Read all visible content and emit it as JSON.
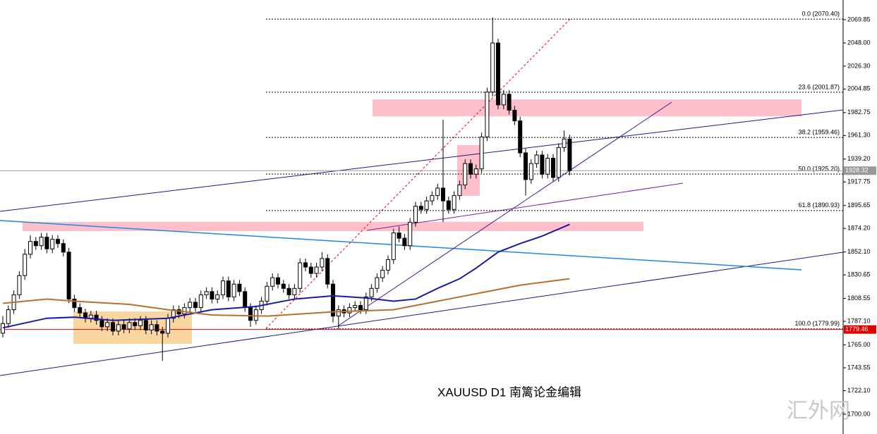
{
  "chart_data": {
    "type": "candlestick",
    "annotation": "XAUUSD  D1  南篱论金编辑",
    "watermark": "汇外网",
    "ylim": [
      1681.5,
      2088.3
    ],
    "yticks": [
      2069.85,
      2048,
      2026.3,
      2004.85,
      1982.75,
      1961.3,
      1939.2,
      1917.75,
      1895.65,
      1874.2,
      1852.1,
      1830.65,
      1808.55,
      1787.1,
      1765,
      1743.55,
      1722.1,
      1700
    ],
    "ytick_labels": [
      "2069.85",
      "2048.00",
      "2026.30",
      "2004.85",
      "1982.75",
      "1961.30",
      "1939.20",
      "1917.75",
      "1895.65",
      "1874.20",
      "1852.10",
      "1830.65",
      "1808.55",
      "1787.10",
      "1765.00",
      "1743.55",
      "1722.10",
      "1700.00"
    ],
    "ohlc": [
      [
        1776,
        1792,
        1772,
        1785
      ],
      [
        1785,
        1802,
        1781,
        1798
      ],
      [
        1798,
        1816,
        1794,
        1812
      ],
      [
        1812,
        1834,
        1808,
        1830
      ],
      [
        1830,
        1855,
        1826,
        1850
      ],
      [
        1850,
        1868,
        1846,
        1862
      ],
      [
        1862,
        1866,
        1854,
        1858
      ],
      [
        1858,
        1870,
        1854,
        1866
      ],
      [
        1866,
        1870,
        1851,
        1855
      ],
      [
        1855,
        1868,
        1851,
        1864
      ],
      [
        1864,
        1868,
        1856,
        1860
      ],
      [
        1860,
        1864,
        1848,
        1852
      ],
      [
        1852,
        1856,
        1804,
        1808
      ],
      [
        1808,
        1812,
        1796,
        1800
      ],
      [
        1800,
        1804,
        1791,
        1795
      ],
      [
        1795,
        1799,
        1786,
        1790
      ],
      [
        1790,
        1797,
        1786,
        1793
      ],
      [
        1793,
        1797,
        1784,
        1788
      ],
      [
        1788,
        1792,
        1778,
        1782
      ],
      [
        1782,
        1790,
        1778,
        1786
      ],
      [
        1786,
        1790,
        1774,
        1778
      ],
      [
        1778,
        1788,
        1774,
        1784
      ],
      [
        1784,
        1788,
        1776,
        1780
      ],
      [
        1780,
        1790,
        1776,
        1786
      ],
      [
        1786,
        1790,
        1779,
        1783
      ],
      [
        1783,
        1792,
        1779,
        1788
      ],
      [
        1788,
        1792,
        1775,
        1779
      ],
      [
        1779,
        1788,
        1775,
        1784
      ],
      [
        1784,
        1788,
        1774,
        1778
      ],
      [
        1778,
        1782,
        1750,
        1776
      ],
      [
        1776,
        1794,
        1772,
        1790
      ],
      [
        1790,
        1802,
        1786,
        1798
      ],
      [
        1798,
        1802,
        1790,
        1794
      ],
      [
        1794,
        1804,
        1790,
        1800
      ],
      [
        1800,
        1809,
        1796,
        1805
      ],
      [
        1805,
        1809,
        1796,
        1800
      ],
      [
        1800,
        1816,
        1796,
        1812
      ],
      [
        1812,
        1819,
        1808,
        1815
      ],
      [
        1815,
        1819,
        1804,
        1808
      ],
      [
        1808,
        1816,
        1804,
        1812
      ],
      [
        1812,
        1829,
        1808,
        1825
      ],
      [
        1825,
        1829,
        1806,
        1810
      ],
      [
        1810,
        1826,
        1806,
        1822
      ],
      [
        1822,
        1826,
        1811,
        1815
      ],
      [
        1815,
        1819,
        1796,
        1800
      ],
      [
        1800,
        1804,
        1782,
        1788
      ],
      [
        1788,
        1802,
        1784,
        1798
      ],
      [
        1798,
        1810,
        1794,
        1806
      ],
      [
        1806,
        1824,
        1802,
        1820
      ],
      [
        1820,
        1832,
        1816,
        1828
      ],
      [
        1828,
        1832,
        1818,
        1822
      ],
      [
        1822,
        1826,
        1814,
        1818
      ],
      [
        1818,
        1822,
        1808,
        1812
      ],
      [
        1812,
        1822,
        1808,
        1818
      ],
      [
        1818,
        1846,
        1814,
        1842
      ],
      [
        1842,
        1846,
        1834,
        1838
      ],
      [
        1838,
        1842,
        1828,
        1832
      ],
      [
        1832,
        1842,
        1828,
        1838
      ],
      [
        1838,
        1852,
        1834,
        1846
      ],
      [
        1846,
        1850,
        1818,
        1822
      ],
      [
        1822,
        1826,
        1786,
        1792
      ],
      [
        1792,
        1802,
        1780,
        1798
      ],
      [
        1798,
        1802,
        1791,
        1795
      ],
      [
        1795,
        1804,
        1791,
        1800
      ],
      [
        1800,
        1806,
        1796,
        1802
      ],
      [
        1802,
        1806,
        1794,
        1798
      ],
      [
        1798,
        1814,
        1794,
        1810
      ],
      [
        1810,
        1822,
        1806,
        1818
      ],
      [
        1818,
        1832,
        1814,
        1828
      ],
      [
        1828,
        1839,
        1824,
        1835
      ],
      [
        1835,
        1849,
        1831,
        1845
      ],
      [
        1845,
        1874,
        1841,
        1870
      ],
      [
        1870,
        1876,
        1861,
        1865
      ],
      [
        1865,
        1869,
        1854,
        1858
      ],
      [
        1858,
        1884,
        1854,
        1880
      ],
      [
        1880,
        1899,
        1876,
        1895
      ],
      [
        1895,
        1899,
        1888,
        1892
      ],
      [
        1892,
        1904,
        1888,
        1900
      ],
      [
        1900,
        1909,
        1896,
        1905
      ],
      [
        1905,
        1916,
        1901,
        1912
      ],
      [
        1912,
        1976,
        1880,
        1900
      ],
      [
        1900,
        1904,
        1888,
        1892
      ],
      [
        1892,
        1909,
        1888,
        1905
      ],
      [
        1905,
        1919,
        1901,
        1915
      ],
      [
        1915,
        1939,
        1911,
        1935
      ],
      [
        1935,
        1939,
        1921,
        1925
      ],
      [
        1925,
        1934,
        1921,
        1930
      ],
      [
        1930,
        1964,
        1926,
        1960
      ],
      [
        1960,
        2006,
        1956,
        2002
      ],
      [
        2002,
        2072,
        1998,
        2048
      ],
      [
        2048,
        2052,
        1986,
        1990
      ],
      [
        1990,
        2004,
        1986,
        2000
      ],
      [
        2000,
        2004,
        1981,
        1985
      ],
      [
        1985,
        1989,
        1971,
        1975
      ],
      [
        1975,
        1979,
        1941,
        1945
      ],
      [
        1945,
        1949,
        1905,
        1920
      ],
      [
        1920,
        1939,
        1916,
        1935
      ],
      [
        1935,
        1947,
        1931,
        1943
      ],
      [
        1943,
        1947,
        1921,
        1925
      ],
      [
        1925,
        1944,
        1921,
        1940
      ],
      [
        1940,
        1944,
        1918,
        1922
      ],
      [
        1922,
        1954,
        1918,
        1950
      ],
      [
        1950,
        1966,
        1946,
        1958
      ],
      [
        1958,
        1962,
        1924,
        1928.32
      ]
    ],
    "series": [
      {
        "color": "#1a1aa6",
        "x": [
          0,
          8,
          13,
          20,
          30,
          38,
          46,
          53,
          60,
          66,
          71,
          75,
          79,
          83,
          86,
          90,
          94,
          98,
          103
        ],
        "values": [
          1781,
          1790,
          1791,
          1788,
          1790,
          1798,
          1801,
          1808,
          1811,
          1809,
          1806,
          1808,
          1818,
          1827,
          1837,
          1852,
          1860,
          1867,
          1878
        ]
      },
      {
        "color": "#b8702a",
        "x": [
          0,
          8,
          13,
          23,
          30,
          38,
          48,
          60,
          71,
          79,
          87,
          94,
          103
        ],
        "values": [
          1804,
          1808,
          1806,
          1803,
          1798,
          1793,
          1792,
          1796,
          1798,
          1806,
          1814,
          1821,
          1827
        ]
      }
    ],
    "fib_levels": [
      {
        "value": 2070.4,
        "label": "0.0 (2070.40)"
      },
      {
        "value": 2001.87,
        "label": "23.6 (2001.87)"
      },
      {
        "value": 1959.46,
        "label": "38.2 (1959.46)"
      },
      {
        "value": 1925.2,
        "label": "50.0 (1925.20)"
      },
      {
        "value": 1890.93,
        "label": "61.8 (1890.93)"
      },
      {
        "value": 1779.99,
        "label": "100.0 (1779.99)"
      }
    ],
    "price_tags": [
      {
        "value": 1928.32,
        "label": "1928.32",
        "color": "#999999"
      },
      {
        "value": 1779.46,
        "label": "1779.46",
        "color": "#e00000"
      }
    ]
  }
}
